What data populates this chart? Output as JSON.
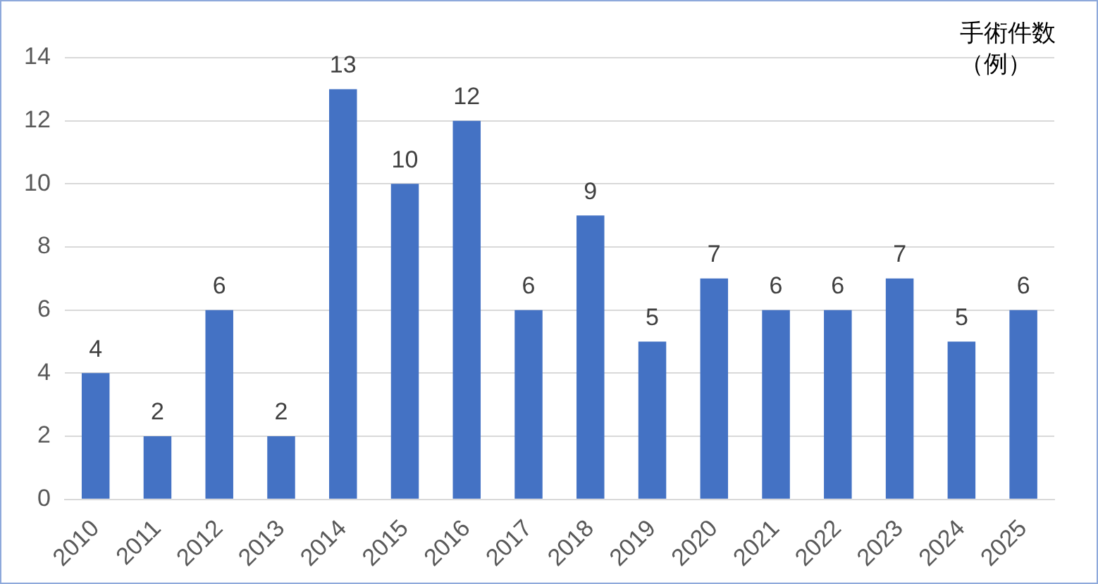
{
  "chart_data": {
    "type": "bar",
    "ylabel": "手術件数（例）",
    "categories": [
      "2010",
      "2011",
      "2012",
      "2013",
      "2014",
      "2015",
      "2016",
      "2017",
      "2018",
      "2019",
      "2020",
      "2021",
      "2022",
      "2023",
      "2024",
      "2025"
    ],
    "values": [
      4,
      2,
      6,
      2,
      13,
      10,
      12,
      6,
      9,
      5,
      7,
      6,
      6,
      7,
      5,
      6
    ],
    "color": "#4472c4",
    "ylim": [
      0,
      14
    ],
    "yticks": [
      0,
      2,
      4,
      6,
      8,
      10,
      12,
      14
    ],
    "grid": "y",
    "data_labels": true,
    "legend": false
  }
}
